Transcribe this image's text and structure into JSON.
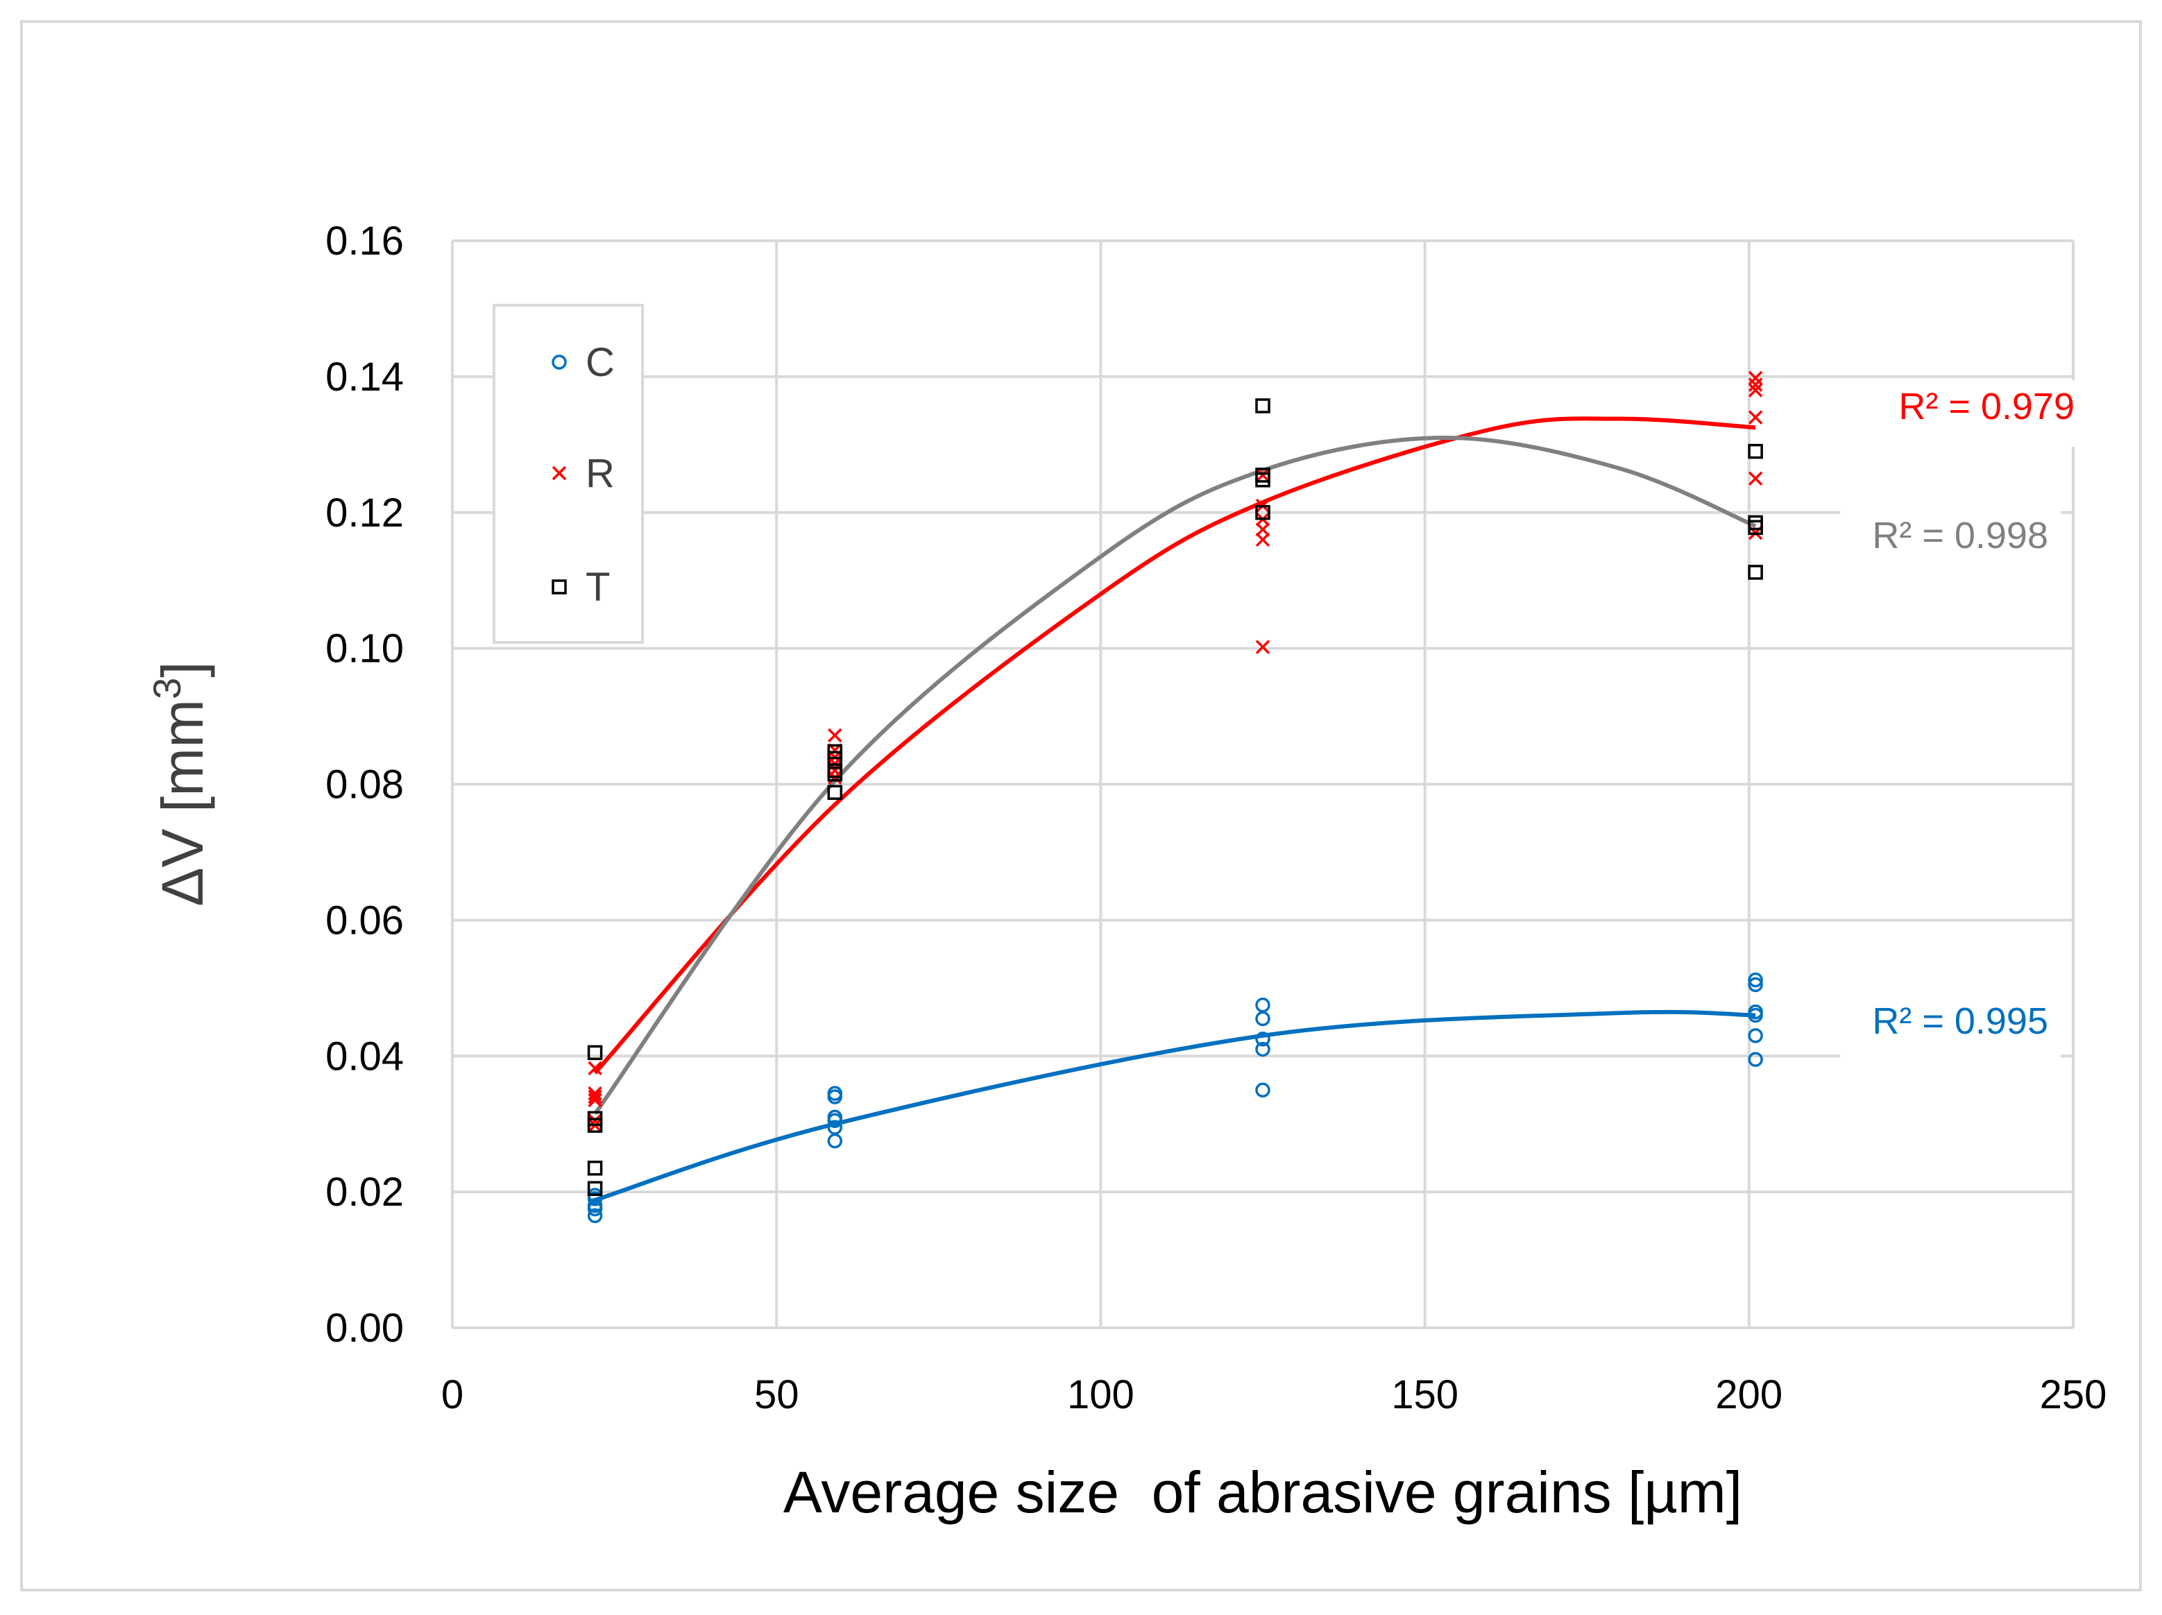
{
  "chart_data": {
    "type": "scatter",
    "title": "",
    "xlabel": "Average size  of abrasive grains [µm]",
    "ylabel": "ΔV [mm",
    "ylabel_sup": "3",
    "ylabel_close": "]",
    "xlim": [
      0,
      250
    ],
    "ylim": [
      0,
      0.16
    ],
    "x_ticks": [
      0,
      50,
      100,
      150,
      200,
      250
    ],
    "y_ticks": [
      0,
      0.02,
      0.04,
      0.06,
      0.08,
      0.1,
      0.12,
      0.14,
      0.16
    ],
    "x_tick_labels": [
      "0",
      "50",
      "100",
      "150",
      "200",
      "250"
    ],
    "y_tick_labels": [
      "0.00",
      "0.02",
      "0.04",
      "0.06",
      "0.08",
      "0.10",
      "0.12",
      "0.14",
      "0.16"
    ],
    "grid": true,
    "legend_position": "top-left",
    "series": [
      {
        "name": "C",
        "marker": "circle",
        "color": "#0070c0",
        "points": [
          [
            22,
            0.0165
          ],
          [
            22,
            0.0175
          ],
          [
            22,
            0.018
          ],
          [
            22,
            0.019
          ],
          [
            22,
            0.0195
          ],
          [
            59,
            0.0275
          ],
          [
            59,
            0.0295
          ],
          [
            59,
            0.0305
          ],
          [
            59,
            0.031
          ],
          [
            59,
            0.034
          ],
          [
            59,
            0.0345
          ],
          [
            125,
            0.035
          ],
          [
            125,
            0.041
          ],
          [
            125,
            0.0425
          ],
          [
            125,
            0.0455
          ],
          [
            125,
            0.0475
          ],
          [
            201,
            0.0395
          ],
          [
            201,
            0.043
          ],
          [
            201,
            0.046
          ],
          [
            201,
            0.0465
          ],
          [
            201,
            0.0505
          ],
          [
            201,
            0.0512
          ]
        ],
        "trend": {
          "points": [
            [
              22,
              0.0188
            ],
            [
              59,
              0.03
            ],
            [
              125,
              0.043
            ],
            [
              179,
              0.0463
            ],
            [
              201,
              0.046
            ]
          ]
        },
        "r2_label": "R² = 0.995"
      },
      {
        "name": "R",
        "marker": "x",
        "color": "#ff0000",
        "points": [
          [
            22,
            0.0298
          ],
          [
            22,
            0.0305
          ],
          [
            22,
            0.0335
          ],
          [
            22,
            0.034
          ],
          [
            22,
            0.0345
          ],
          [
            22,
            0.0382
          ],
          [
            59,
            0.081
          ],
          [
            59,
            0.082
          ],
          [
            59,
            0.083
          ],
          [
            59,
            0.084
          ],
          [
            59,
            0.085
          ],
          [
            59,
            0.0872
          ],
          [
            125,
            0.1002
          ],
          [
            125,
            0.116
          ],
          [
            125,
            0.1175
          ],
          [
            125,
            0.119
          ],
          [
            125,
            0.121
          ],
          [
            125,
            0.1255
          ],
          [
            201,
            0.117
          ],
          [
            201,
            0.125
          ],
          [
            201,
            0.134
          ],
          [
            201,
            0.138
          ],
          [
            201,
            0.1388
          ],
          [
            201,
            0.1398
          ]
        ],
        "trend": {
          "points": [
            [
              22,
              0.0375
            ],
            [
              59,
              0.077
            ],
            [
              100,
              0.108
            ],
            [
              125,
              0.1215
            ],
            [
              160,
              0.1322
            ],
            [
              180,
              0.1338
            ],
            [
              201,
              0.1325
            ]
          ]
        },
        "r2_label": "R² = 0.979"
      },
      {
        "name": "T",
        "marker": "square",
        "color": "#000000",
        "points": [
          [
            22,
            0.0205
          ],
          [
            22,
            0.0235
          ],
          [
            22,
            0.0298
          ],
          [
            22,
            0.0308
          ],
          [
            22,
            0.0405
          ],
          [
            59,
            0.0788
          ],
          [
            59,
            0.0815
          ],
          [
            59,
            0.082
          ],
          [
            59,
            0.0838
          ],
          [
            59,
            0.0848
          ],
          [
            125,
            0.12
          ],
          [
            125,
            0.1248
          ],
          [
            125,
            0.1255
          ],
          [
            125,
            0.1357
          ],
          [
            201,
            0.1112
          ],
          [
            201,
            0.1178
          ],
          [
            201,
            0.1185
          ],
          [
            201,
            0.129
          ]
        ],
        "trend": {
          "color": "#808080",
          "points": [
            [
              22,
              0.0315
            ],
            [
              59,
              0.0805
            ],
            [
              100,
              0.1135
            ],
            [
              125,
              0.1262
            ],
            [
              153,
              0.131
            ],
            [
              180,
              0.1265
            ],
            [
              201,
              0.118
            ]
          ]
        },
        "r2_label": "R² = 0.998"
      }
    ]
  }
}
